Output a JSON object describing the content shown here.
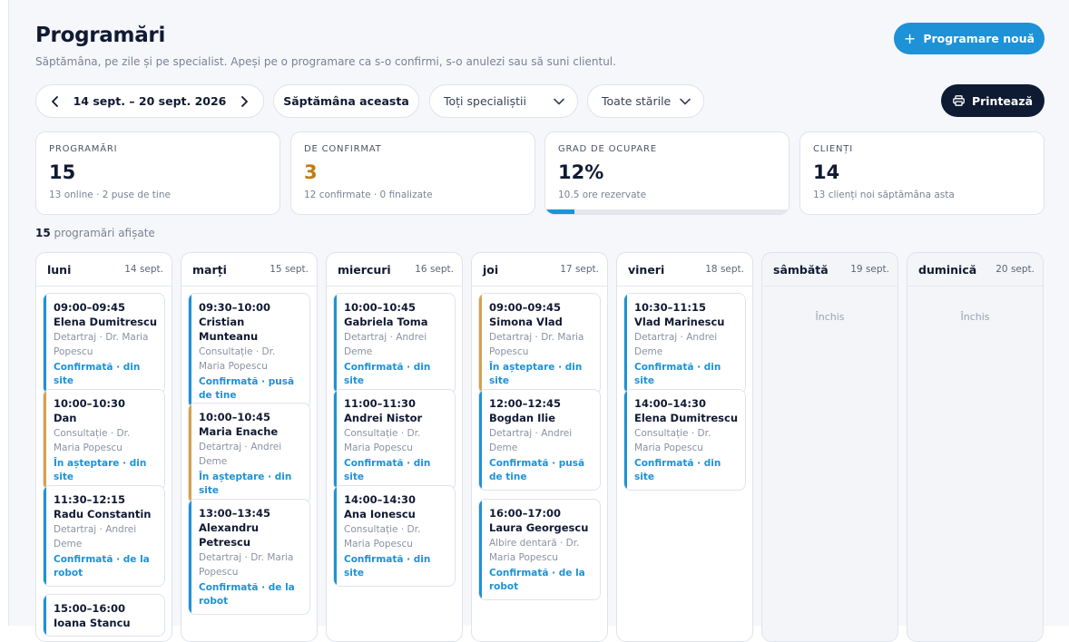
{
  "header": {
    "title": "Programări",
    "subtitle": "Săptămâna, pe zile și pe specialist. Apeși pe o programare ca s-o confirmi, s-o anulezi sau să suni clientul.",
    "new_button": "Programare nouă",
    "new_icon": "plus-icon"
  },
  "toolbar": {
    "week_range": "14 sept. – 20 sept. 2026",
    "this_week": "Săptămâna aceasta",
    "specialists_filter": "Toți specialiștii",
    "status_filter": "Toate stările",
    "print_button": "Printează",
    "print_icon": "printer-icon"
  },
  "stats": [
    {
      "label": "PROGRAMĂRI",
      "value": "15",
      "sub": "13 online · 2 puse de tine"
    },
    {
      "label": "DE CONFIRMAT",
      "value": "3",
      "sub": "12 confirmate · 0 finalizate"
    },
    {
      "label": "GRAD DE OCUPARE",
      "value": "12%",
      "sub": "10.5 ore rezervate",
      "progress": 0.12
    },
    {
      "label": "CLIENȚI",
      "value": "14",
      "sub": "13 clienți noi săptămâna asta"
    }
  ],
  "shown": {
    "count": "15",
    "label": "programări afișate"
  },
  "colors": {
    "accent": "#1d92d6",
    "pending": "#d4a24c",
    "warning_value": "#c07d12",
    "dark": "#0f1b33"
  },
  "days": [
    {
      "name": "luni",
      "date": "14 sept.",
      "closed": false,
      "appointments": [
        {
          "time": "09:00–09:45",
          "client": "Elena Dumitrescu",
          "service": "Detartraj · Dr. Maria Popescu",
          "status": "Confirmată · din site",
          "pending": false
        },
        {
          "time": "10:00–10:30",
          "client": "Dan",
          "service": "Consultație · Dr. Maria Popescu",
          "status": "În așteptare · din site",
          "pending": true
        },
        {
          "time": "11:30–12:15",
          "client": "Radu Constantin",
          "service": "Detartraj · Andrei Deme",
          "status": "Confirmată · de la robot",
          "pending": false
        },
        {
          "time": "15:00–16:00",
          "client": "Ioana Stancu",
          "service": "",
          "status": "",
          "pending": false
        }
      ]
    },
    {
      "name": "marți",
      "date": "15 sept.",
      "closed": false,
      "appointments": [
        {
          "time": "09:30–10:00",
          "client": "Cristian Munteanu",
          "service": "Consultație · Dr. Maria Popescu",
          "status": "Confirmată · pusă de tine",
          "pending": false
        },
        {
          "time": "10:00–10:45",
          "client": "Maria Enache",
          "service": "Detartraj · Andrei Deme",
          "status": "În așteptare · din site",
          "pending": true
        },
        {
          "time": "13:00–13:45",
          "client": "Alexandru Petrescu",
          "service": "Detartraj · Dr. Maria Popescu",
          "status": "Confirmată · de la robot",
          "pending": false
        }
      ]
    },
    {
      "name": "miercuri",
      "date": "16 sept.",
      "closed": false,
      "appointments": [
        {
          "time": "10:00–10:45",
          "client": "Gabriela Toma",
          "service": "Detartraj · Andrei Deme",
          "status": "Confirmată · din site",
          "pending": false
        },
        {
          "time": "11:00–11:30",
          "client": "Andrei Nistor",
          "service": "Consultație · Dr. Maria Popescu",
          "status": "Confirmată · din site",
          "pending": false
        },
        {
          "time": "14:00–14:30",
          "client": "Ana Ionescu",
          "service": "Consultație · Dr. Maria Popescu",
          "status": "Confirmată · din site",
          "pending": false
        }
      ]
    },
    {
      "name": "joi",
      "date": "17 sept.",
      "closed": false,
      "appointments": [
        {
          "time": "09:00–09:45",
          "client": "Simona Vlad",
          "service": "Detartraj · Dr. Maria Popescu",
          "status": "În așteptare · din site",
          "pending": true
        },
        {
          "time": "12:00–12:45",
          "client": "Bogdan Ilie",
          "service": "Detartraj · Andrei Deme",
          "status": "Confirmată · pusă de tine",
          "pending": false
        },
        {
          "time": "16:00–17:00",
          "client": "Laura Georgescu",
          "service": "Albire dentară · Dr. Maria Popescu",
          "status": "Confirmată · de la robot",
          "pending": false
        }
      ]
    },
    {
      "name": "vineri",
      "date": "18 sept.",
      "closed": false,
      "appointments": [
        {
          "time": "10:30–11:15",
          "client": "Vlad Marinescu",
          "service": "Detartraj · Andrei Deme",
          "status": "Confirmată · din site",
          "pending": false
        },
        {
          "time": "14:00–14:30",
          "client": "Elena Dumitrescu",
          "service": "Consultație · Dr. Maria Popescu",
          "status": "Confirmată · din site",
          "pending": false
        }
      ]
    },
    {
      "name": "sâmbătă",
      "date": "19 sept.",
      "closed": true,
      "closed_label": "Închis",
      "appointments": []
    },
    {
      "name": "duminică",
      "date": "20 sept.",
      "closed": true,
      "closed_label": "Închis",
      "appointments": []
    }
  ]
}
